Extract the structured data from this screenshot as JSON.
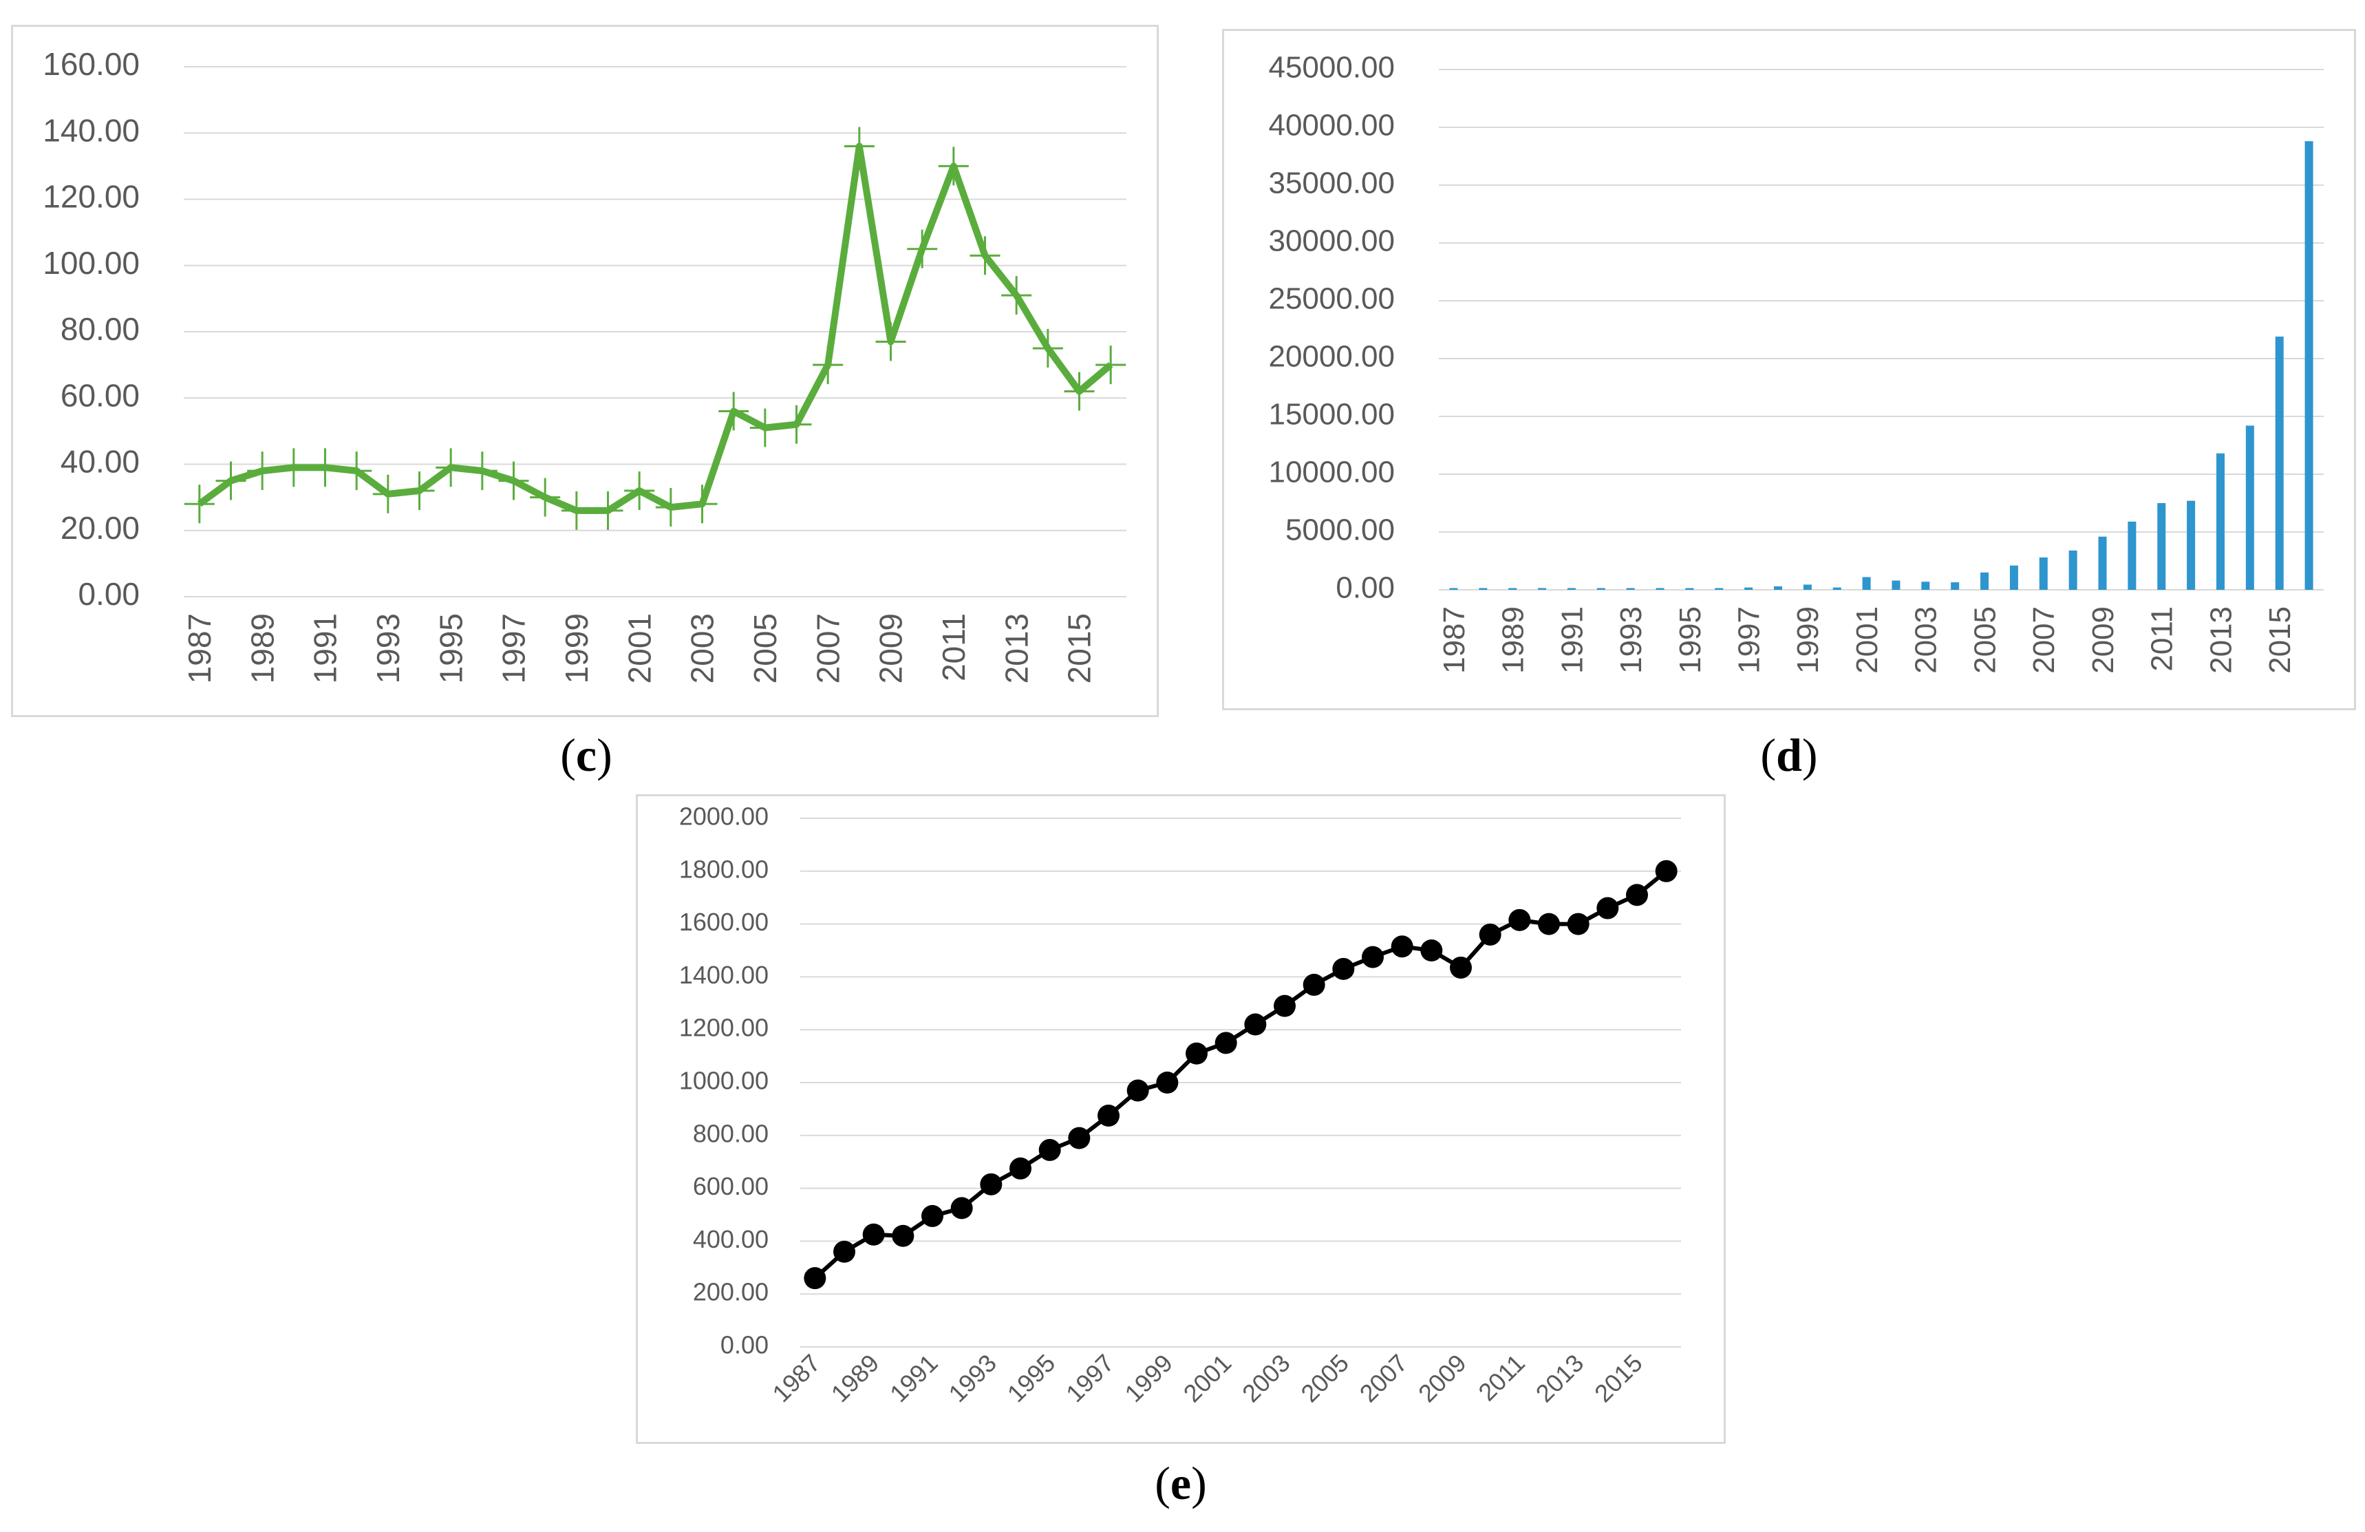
{
  "captions": {
    "c": "c",
    "d": "d",
    "e": "e"
  },
  "colors": {
    "c_line": "#5aad3d",
    "d_bar": "#2e95cf",
    "e_line": "#000000",
    "grid": "#d9d9d9",
    "tick_text": "#595959"
  },
  "chart_data": [
    {
      "id": "c",
      "type": "line",
      "marker": "plus",
      "x": [
        1987,
        1988,
        1989,
        1990,
        1991,
        1992,
        1993,
        1994,
        1995,
        1996,
        1997,
        1998,
        1999,
        2000,
        2001,
        2002,
        2003,
        2004,
        2005,
        2006,
        2007,
        2008,
        2009,
        2010,
        2011,
        2012,
        2013,
        2014,
        2015,
        2016
      ],
      "values": [
        28,
        35,
        38,
        39,
        39,
        38,
        31,
        32,
        39,
        38,
        35,
        30,
        26,
        26,
        32,
        27,
        28,
        56,
        51,
        52,
        70,
        136,
        77,
        105,
        130,
        103,
        91,
        75,
        62,
        70
      ],
      "ylim": [
        0,
        160
      ],
      "yticks": [
        "0.00",
        "20.00",
        "40.00",
        "60.00",
        "80.00",
        "100.00",
        "120.00",
        "140.00",
        "160.00"
      ],
      "xtick_labels": [
        "1987",
        "1989",
        "1991",
        "1993",
        "1995",
        "1997",
        "1999",
        "2001",
        "2003",
        "2005",
        "2007",
        "2009",
        "2011",
        "2013",
        "2015"
      ],
      "grid": true
    },
    {
      "id": "d",
      "type": "bar",
      "x": [
        1987,
        1988,
        1989,
        1990,
        1991,
        1992,
        1993,
        1994,
        1995,
        1996,
        1997,
        1998,
        1999,
        2000,
        2001,
        2002,
        2003,
        2004,
        2005,
        2006,
        2007,
        2008,
        2009,
        2010,
        2011,
        2012,
        2013,
        2014,
        2015,
        2016
      ],
      "values": [
        150,
        150,
        150,
        150,
        150,
        150,
        150,
        150,
        150,
        150,
        200,
        300,
        450,
        200,
        1100,
        800,
        700,
        650,
        1500,
        2100,
        2800,
        3400,
        4600,
        5900,
        7500,
        7700,
        11800,
        14200,
        21900,
        38800
      ],
      "ylim": [
        0,
        45000
      ],
      "yticks": [
        "0.00",
        "5000.00",
        "10000.00",
        "15000.00",
        "20000.00",
        "25000.00",
        "30000.00",
        "35000.00",
        "40000.00",
        "45000.00"
      ],
      "xtick_labels": [
        "1987",
        "1989",
        "1991",
        "1993",
        "1995",
        "1997",
        "1999",
        "2001",
        "2003",
        "2005",
        "2007",
        "2009",
        "2011",
        "2013",
        "2015"
      ],
      "grid": true
    },
    {
      "id": "e",
      "type": "line",
      "marker": "circle",
      "x": [
        1987,
        1988,
        1989,
        1990,
        1991,
        1992,
        1993,
        1994,
        1995,
        1996,
        1997,
        1998,
        1999,
        2000,
        2001,
        2002,
        2003,
        2004,
        2005,
        2006,
        2007,
        2008,
        2009,
        2010,
        2011,
        2012,
        2013,
        2014,
        2015,
        2016
      ],
      "values": [
        260,
        360,
        425,
        420,
        495,
        525,
        615,
        675,
        745,
        790,
        875,
        970,
        1000,
        1110,
        1150,
        1220,
        1290,
        1370,
        1430,
        1475,
        1515,
        1500,
        1435,
        1560,
        1615,
        1600,
        1600,
        1660,
        1710,
        1800
      ],
      "ylim": [
        0,
        2000
      ],
      "yticks": [
        "0.00",
        "200.00",
        "400.00",
        "600.00",
        "800.00",
        "1000.00",
        "1200.00",
        "1400.00",
        "1600.00",
        "1800.00",
        "2000.00"
      ],
      "xtick_labels": [
        "1987",
        "1989",
        "1991",
        "1993",
        "1995",
        "1997",
        "1999",
        "2001",
        "2003",
        "2005",
        "2007",
        "2009",
        "2011",
        "2013",
        "2015"
      ],
      "grid": true
    }
  ]
}
